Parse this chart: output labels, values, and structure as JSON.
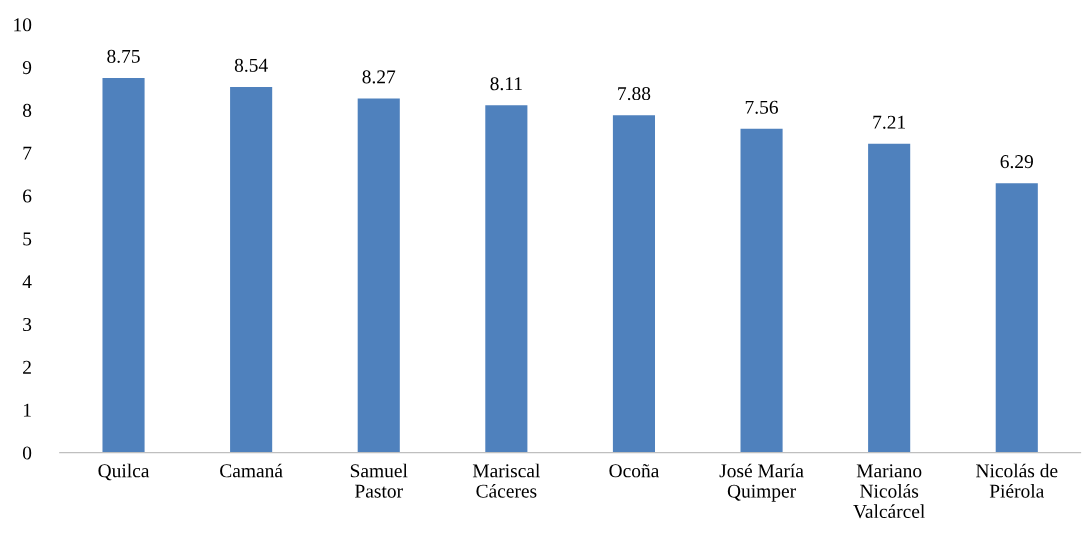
{
  "chart_data": {
    "type": "bar",
    "categories": [
      "Quilca",
      "Camaná",
      "Samuel\nPastor",
      "Mariscal\nCáceres",
      "Ocoña",
      "José María\nQuimper",
      "Mariano\nNicolás\nValcárcel",
      "Nicolás de\nPiérola"
    ],
    "values": [
      8.75,
      8.54,
      8.27,
      8.11,
      7.88,
      7.56,
      7.21,
      6.29
    ],
    "color": "#4f81bd",
    "ylim": [
      0,
      10
    ],
    "yticks": [
      0,
      1,
      2,
      3,
      4,
      5,
      6,
      7,
      8,
      9,
      10
    ],
    "grid": false,
    "legend": false,
    "data_labels": true
  }
}
